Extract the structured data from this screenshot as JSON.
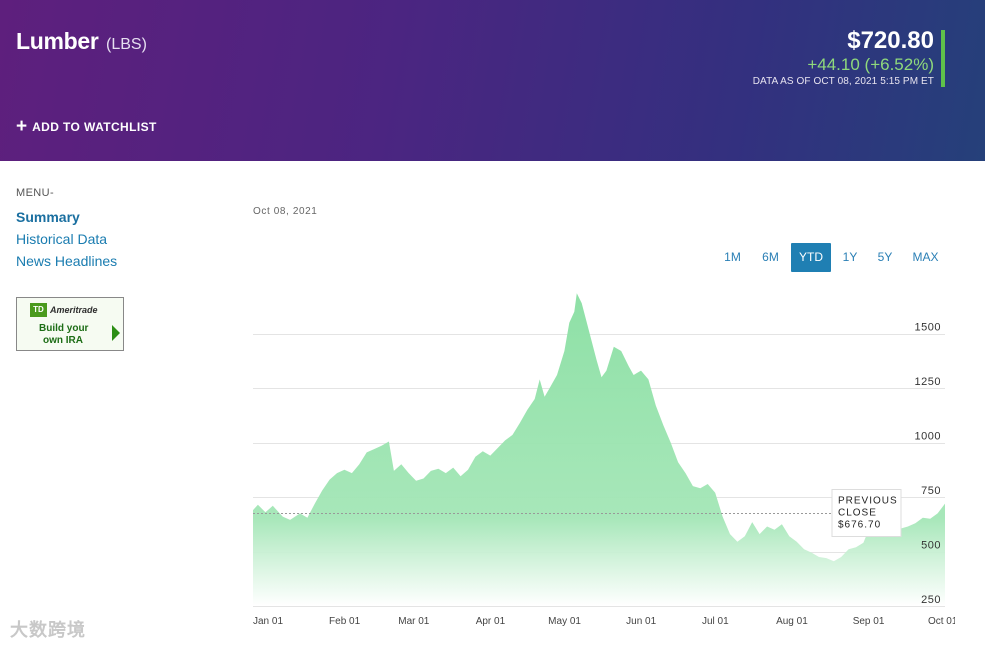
{
  "header": {
    "name": "Lumber",
    "unit": "(LBS)",
    "add_watchlist": "ADD TO WATCHLIST",
    "price": "$720.80",
    "change": "+44.10 (+6.52%)",
    "as_of": "DATA AS OF OCT 08, 2021 5:15 PM ET",
    "accent": "#5fc24a"
  },
  "menu": {
    "title": "MENU-",
    "items": [
      {
        "label": "Summary",
        "active": true
      },
      {
        "label": "Historical Data",
        "active": false
      },
      {
        "label": "News Headlines",
        "active": false
      }
    ]
  },
  "ad": {
    "logo": "TD",
    "brand": "Ameritrade",
    "line1": "Build your",
    "line2": "own IRA"
  },
  "chart_date": "Oct 08, 2021",
  "ranges": [
    {
      "label": "1M",
      "active": false
    },
    {
      "label": "6M",
      "active": false
    },
    {
      "label": "YTD",
      "active": true
    },
    {
      "label": "1Y",
      "active": false
    },
    {
      "label": "5Y",
      "active": false
    },
    {
      "label": "MAX",
      "active": false
    }
  ],
  "watermark": "大数跨境",
  "chart_data": {
    "type": "area",
    "start_date": "2021-01-01",
    "ylim": [
      250,
      1700
    ],
    "yticks": [
      250,
      500,
      750,
      1000,
      1250,
      1500
    ],
    "grid": true,
    "fill_color": "#8ee0a6",
    "xticks": [
      {
        "label": "Jan 01",
        "date": "2021-01-01"
      },
      {
        "label": "Feb 01",
        "date": "2021-02-01"
      },
      {
        "label": "Mar 01",
        "date": "2021-03-01"
      },
      {
        "label": "Apr 01",
        "date": "2021-04-01"
      },
      {
        "label": "May 01",
        "date": "2021-05-01"
      },
      {
        "label": "Jun 01",
        "date": "2021-06-01"
      },
      {
        "label": "Jul 01",
        "date": "2021-07-01"
      },
      {
        "label": "Aug 01",
        "date": "2021-08-01"
      },
      {
        "label": "Sep 01",
        "date": "2021-09-01"
      },
      {
        "label": "Oct 01",
        "date": "2021-10-01"
      }
    ],
    "previous_close": {
      "label1": "PREVIOUS",
      "label2": "CLOSE",
      "value_label": "$676.70",
      "value": 676.7
    },
    "points": [
      [
        "2021-01-01",
        690
      ],
      [
        "2021-01-03",
        715
      ],
      [
        "2021-01-06",
        680
      ],
      [
        "2021-01-09",
        710
      ],
      [
        "2021-01-13",
        660
      ],
      [
        "2021-01-16",
        645
      ],
      [
        "2021-01-20",
        675
      ],
      [
        "2021-01-23",
        655
      ],
      [
        "2021-01-26",
        720
      ],
      [
        "2021-01-29",
        780
      ],
      [
        "2021-02-01",
        830
      ],
      [
        "2021-02-04",
        860
      ],
      [
        "2021-02-07",
        875
      ],
      [
        "2021-02-10",
        860
      ],
      [
        "2021-02-13",
        900
      ],
      [
        "2021-02-16",
        955
      ],
      [
        "2021-02-19",
        970
      ],
      [
        "2021-02-22",
        985
      ],
      [
        "2021-02-25",
        1005
      ],
      [
        "2021-02-27",
        870
      ],
      [
        "2021-03-02",
        900
      ],
      [
        "2021-03-05",
        860
      ],
      [
        "2021-03-08",
        825
      ],
      [
        "2021-03-11",
        835
      ],
      [
        "2021-03-14",
        870
      ],
      [
        "2021-03-17",
        880
      ],
      [
        "2021-03-20",
        860
      ],
      [
        "2021-03-23",
        885
      ],
      [
        "2021-03-26",
        845
      ],
      [
        "2021-03-29",
        875
      ],
      [
        "2021-04-01",
        935
      ],
      [
        "2021-04-04",
        960
      ],
      [
        "2021-04-07",
        940
      ],
      [
        "2021-04-10",
        975
      ],
      [
        "2021-04-13",
        1010
      ],
      [
        "2021-04-16",
        1035
      ],
      [
        "2021-04-19",
        1090
      ],
      [
        "2021-04-22",
        1150
      ],
      [
        "2021-04-25",
        1200
      ],
      [
        "2021-04-27",
        1290
      ],
      [
        "2021-04-29",
        1210
      ],
      [
        "2021-05-01",
        1250
      ],
      [
        "2021-05-04",
        1310
      ],
      [
        "2021-05-07",
        1420
      ],
      [
        "2021-05-09",
        1550
      ],
      [
        "2021-05-11",
        1600
      ],
      [
        "2021-05-12",
        1685
      ],
      [
        "2021-05-14",
        1640
      ],
      [
        "2021-05-17",
        1510
      ],
      [
        "2021-05-20",
        1380
      ],
      [
        "2021-05-22",
        1300
      ],
      [
        "2021-05-24",
        1330
      ],
      [
        "2021-05-27",
        1440
      ],
      [
        "2021-05-30",
        1420
      ],
      [
        "2021-06-02",
        1350
      ],
      [
        "2021-06-04",
        1310
      ],
      [
        "2021-06-07",
        1330
      ],
      [
        "2021-06-10",
        1290
      ],
      [
        "2021-06-13",
        1170
      ],
      [
        "2021-06-16",
        1080
      ],
      [
        "2021-06-19",
        1000
      ],
      [
        "2021-06-22",
        910
      ],
      [
        "2021-06-25",
        860
      ],
      [
        "2021-06-28",
        800
      ],
      [
        "2021-07-01",
        790
      ],
      [
        "2021-07-04",
        810
      ],
      [
        "2021-07-07",
        770
      ],
      [
        "2021-07-10",
        660
      ],
      [
        "2021-07-13",
        580
      ],
      [
        "2021-07-16",
        545
      ],
      [
        "2021-07-19",
        570
      ],
      [
        "2021-07-22",
        635
      ],
      [
        "2021-07-25",
        580
      ],
      [
        "2021-07-28",
        615
      ],
      [
        "2021-07-31",
        600
      ],
      [
        "2021-08-03",
        625
      ],
      [
        "2021-08-06",
        570
      ],
      [
        "2021-08-09",
        545
      ],
      [
        "2021-08-12",
        510
      ],
      [
        "2021-08-15",
        495
      ],
      [
        "2021-08-18",
        475
      ],
      [
        "2021-08-21",
        470
      ],
      [
        "2021-08-24",
        455
      ],
      [
        "2021-08-27",
        475
      ],
      [
        "2021-08-30",
        510
      ],
      [
        "2021-09-02",
        520
      ],
      [
        "2021-09-05",
        540
      ],
      [
        "2021-09-08",
        625
      ],
      [
        "2021-09-11",
        590
      ],
      [
        "2021-09-14",
        615
      ],
      [
        "2021-09-17",
        640
      ],
      [
        "2021-09-20",
        605
      ],
      [
        "2021-09-23",
        615
      ],
      [
        "2021-09-26",
        630
      ],
      [
        "2021-09-29",
        655
      ],
      [
        "2021-10-02",
        650
      ],
      [
        "2021-10-05",
        675
      ],
      [
        "2021-10-08",
        720
      ]
    ]
  }
}
